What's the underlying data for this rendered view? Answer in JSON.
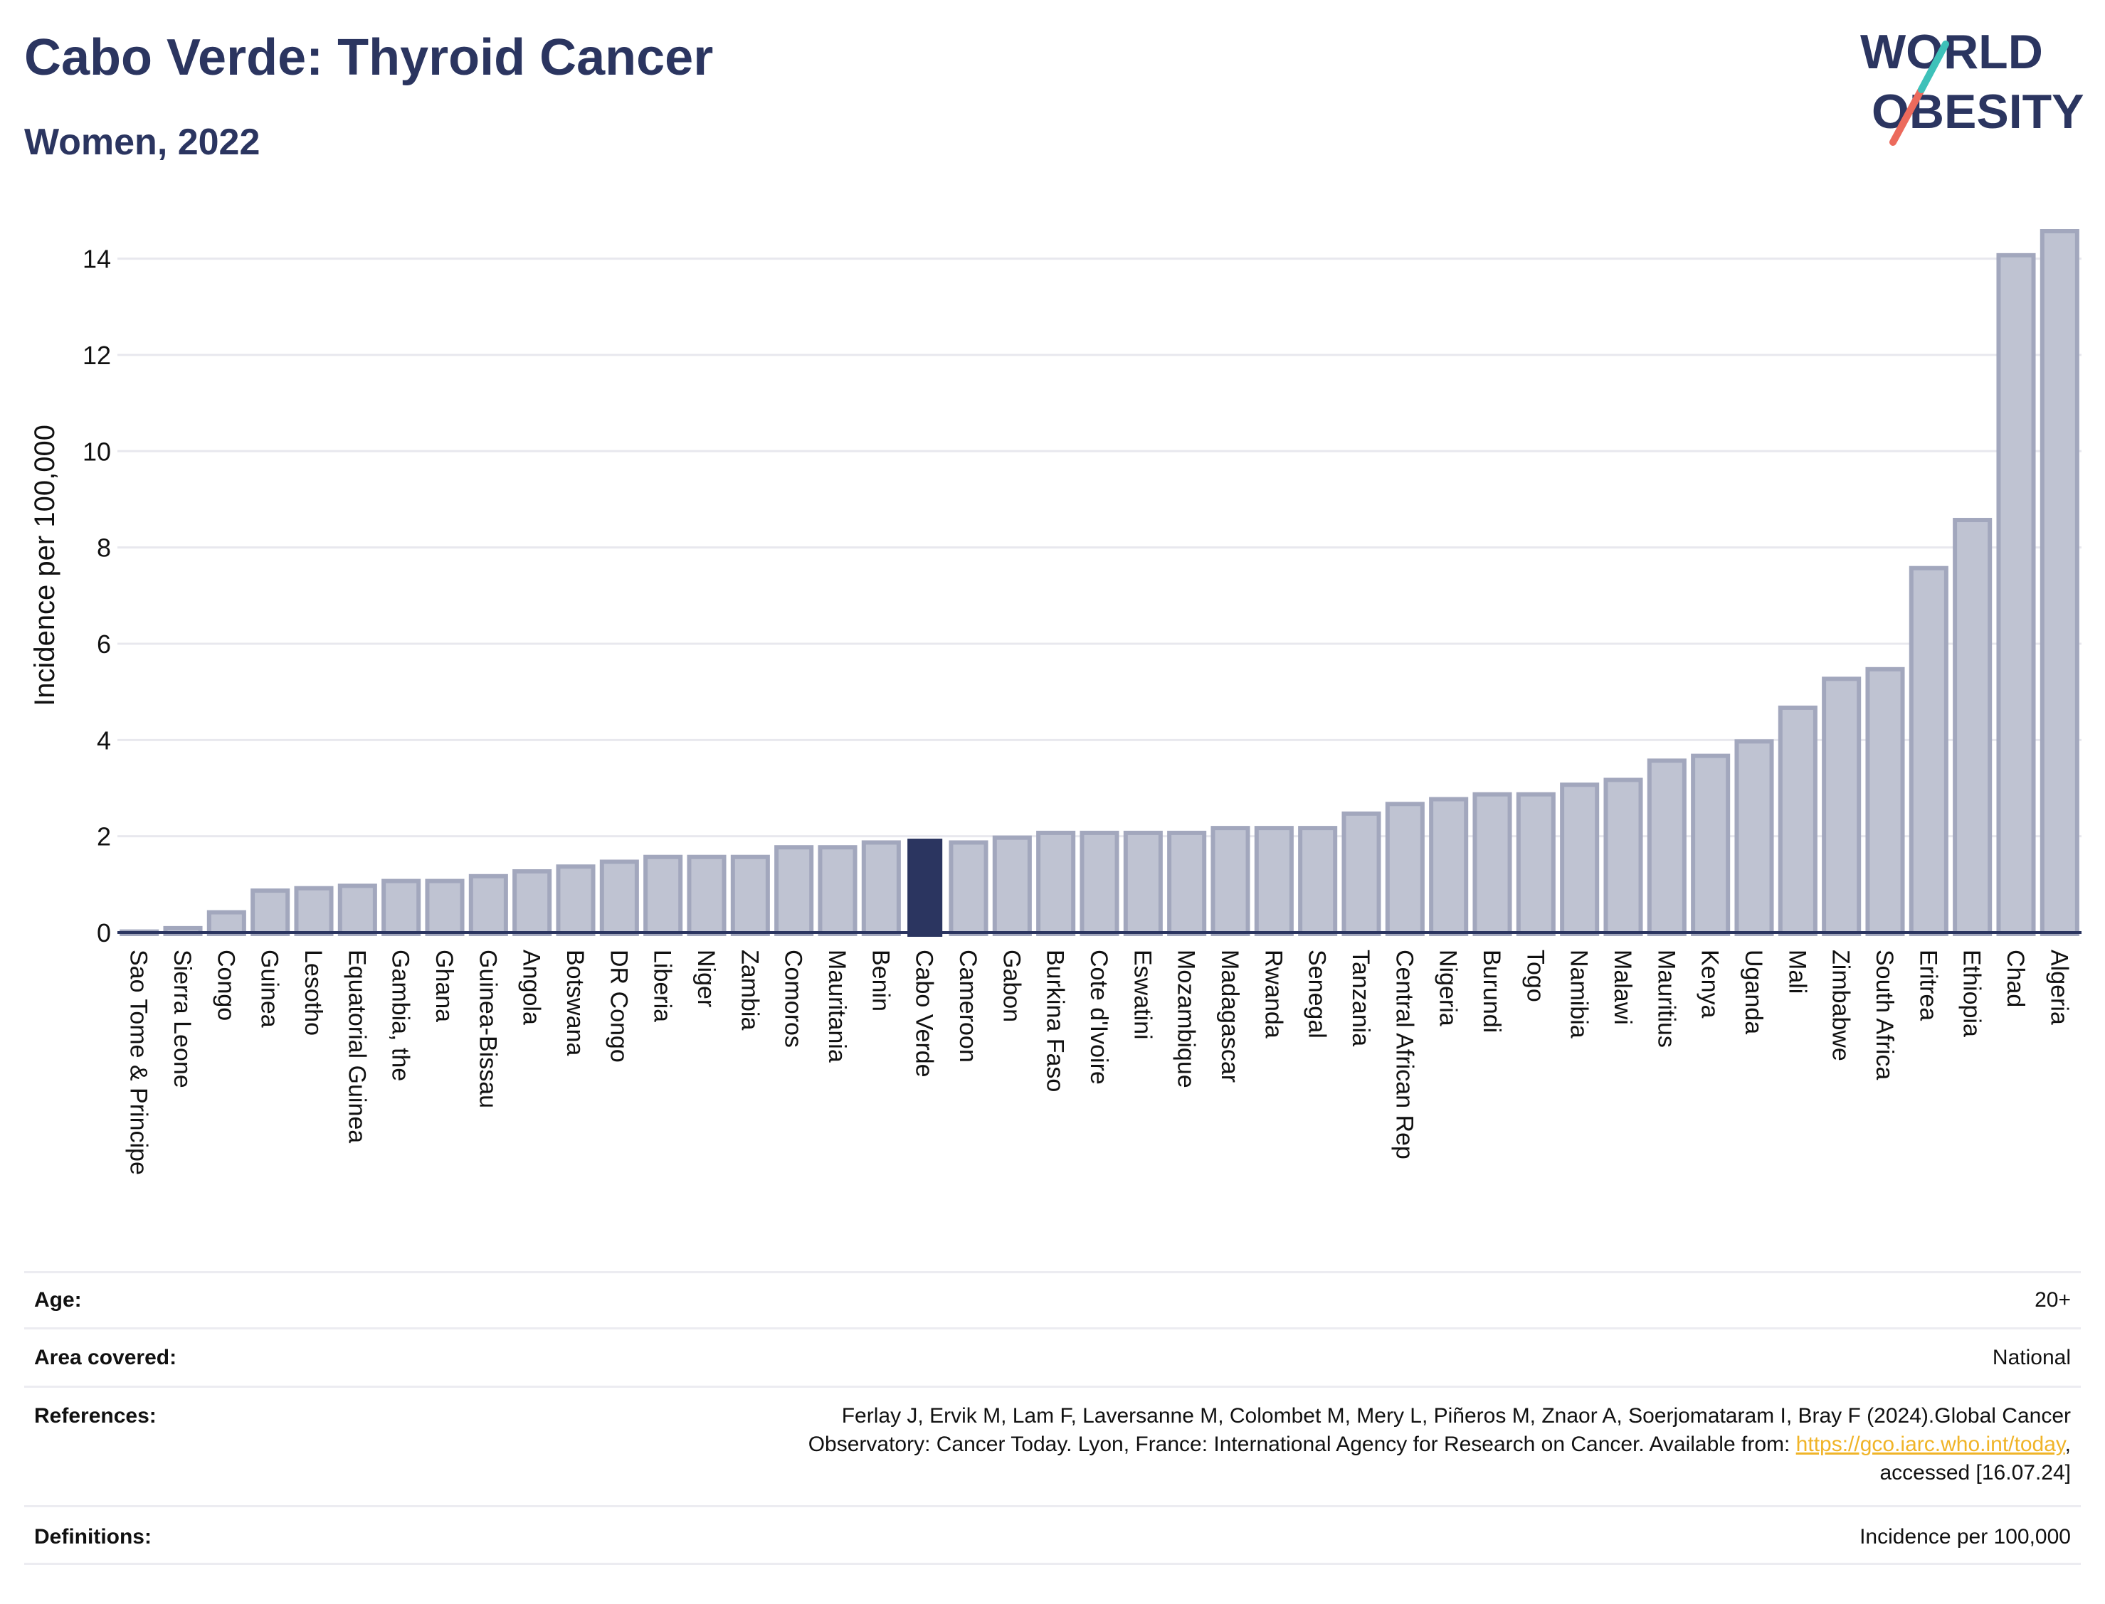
{
  "header": {
    "title": "Cabo Verde: Thyroid Cancer",
    "subtitle": "Women, 2022"
  },
  "logo": {
    "line1": "WORLD",
    "line2": "OBESITY",
    "colors": {
      "text": "#2b3560",
      "slash_top": "#3ec1b9",
      "slash_bottom": "#ec6a5c"
    }
  },
  "colors": {
    "bar_fill": "#bfc3d2",
    "bar_stroke": "#a2a7bd",
    "highlight": "#2b3560",
    "grid": "#e8e8ee",
    "axis": "#2b3560"
  },
  "chart_data": {
    "type": "bar",
    "title": "Cabo Verde: Thyroid Cancer",
    "subtitle": "Women, 2022",
    "xlabel": "",
    "ylabel": "Incidence per 100,000",
    "ylim": [
      0,
      14.6
    ],
    "yticks": [
      0,
      2,
      4,
      6,
      8,
      10,
      12,
      14
    ],
    "grid": true,
    "highlight": "Cabo Verde",
    "categories": [
      "Sao Tome & Principe",
      "Sierra Leone",
      "Congo",
      "Guinea",
      "Lesotho",
      "Equatorial Guinea",
      "Gambia, the",
      "Ghana",
      "Guinea-Bissau",
      "Angola",
      "Botswana",
      "DR Congo",
      "Liberia",
      "Niger",
      "Zambia",
      "Comoros",
      "Mauritania",
      "Benin",
      "Cabo Verde",
      "Cameroon",
      "Gabon",
      "Burkina Faso",
      "Cote d'Ivoire",
      "Eswatini",
      "Mozambique",
      "Madagascar",
      "Rwanda",
      "Senegal",
      "Tanzania",
      "Central African Rep",
      "Nigeria",
      "Burundi",
      "Togo",
      "Namibia",
      "Malawi",
      "Mauritius",
      "Kenya",
      "Uganda",
      "Mali",
      "Zimbabwe",
      "South Africa",
      "Eritrea",
      "Ethiopia",
      "Chad",
      "Algeria"
    ],
    "values": [
      0.05,
      0.12,
      0.45,
      0.9,
      0.95,
      1.0,
      1.1,
      1.1,
      1.2,
      1.3,
      1.4,
      1.5,
      1.6,
      1.6,
      1.6,
      1.8,
      1.8,
      1.9,
      1.95,
      1.9,
      2.0,
      2.1,
      2.1,
      2.1,
      2.1,
      2.2,
      2.2,
      2.2,
      2.5,
      2.7,
      2.8,
      2.9,
      2.9,
      3.1,
      3.2,
      3.6,
      3.7,
      4.0,
      4.7,
      5.3,
      5.5,
      7.6,
      8.6,
      14.1,
      14.6
    ]
  },
  "info": {
    "age_label": "Age:",
    "age_value": "20+",
    "area_label": "Area covered:",
    "area_value": "National",
    "references_label": "References:",
    "references_line1": "Ferlay J, Ervik M, Lam F, Laversanne M, Colombet M, Mery L, Piñeros M, Znaor A, Soerjomataram I, Bray F (2024).Global Cancer",
    "references_line2_pre": "Observatory: Cancer Today. Lyon, France: International Agency for Research on Cancer. Available from: ",
    "references_link": "https://gco.iarc.who.int/today",
    "references_line2_post": ",",
    "references_line3": "accessed [16.07.24]",
    "definitions_label": "Definitions:",
    "definitions_value": "Incidence per 100,000"
  }
}
